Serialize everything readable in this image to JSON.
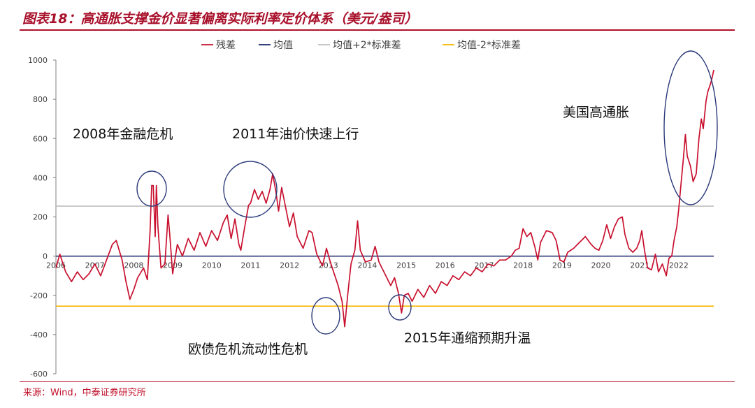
{
  "header": {
    "title": "图表18：高通胀支撑金价显著偏离实际利率定价体系（美元/盎司）"
  },
  "footer": {
    "source": "来源：Wind，中泰证券研究所"
  },
  "colors": {
    "accent": "#b1102a",
    "series_residual": "#c8102e",
    "series_mean": "#17246b",
    "series_upper": "#bfbfbf",
    "series_lower": "#f5b800",
    "circle": "#2b3a7a"
  },
  "chart_data": {
    "type": "line",
    "title": "",
    "xlabel": "",
    "ylabel": "",
    "ylim": [
      -600,
      1000
    ],
    "xlim": [
      2006,
      2022.9
    ],
    "yticks": [
      -600,
      -400,
      -200,
      0,
      200,
      400,
      600,
      800,
      1000
    ],
    "xticks": [
      2006,
      2007,
      2008,
      2009,
      2010,
      2011,
      2012,
      2013,
      2014,
      2015,
      2016,
      2017,
      2018,
      2019,
      2020,
      2021,
      2022
    ],
    "grid": false,
    "legend_position": "top",
    "legend": [
      "残差",
      "均值",
      "均值+2*标准差",
      "均值-2*标准差"
    ],
    "series": [
      {
        "name": "残差",
        "points": [
          [
            2006.0,
            -60
          ],
          [
            2006.1,
            10
          ],
          [
            2006.25,
            -80
          ],
          [
            2006.4,
            -130
          ],
          [
            2006.55,
            -80
          ],
          [
            2006.7,
            -120
          ],
          [
            2006.85,
            -90
          ],
          [
            2007.0,
            -40
          ],
          [
            2007.15,
            -100
          ],
          [
            2007.3,
            -20
          ],
          [
            2007.45,
            60
          ],
          [
            2007.55,
            80
          ],
          [
            2007.7,
            -20
          ],
          [
            2007.8,
            -130
          ],
          [
            2007.9,
            -220
          ],
          [
            2008.0,
            -170
          ],
          [
            2008.1,
            -110
          ],
          [
            2008.25,
            -60
          ],
          [
            2008.35,
            -120
          ],
          [
            2008.42,
            130
          ],
          [
            2008.46,
            360
          ],
          [
            2008.5,
            360
          ],
          [
            2008.55,
            100
          ],
          [
            2008.58,
            360
          ],
          [
            2008.62,
            150
          ],
          [
            2008.7,
            -60
          ],
          [
            2008.8,
            -40
          ],
          [
            2008.88,
            210
          ],
          [
            2008.92,
            120
          ],
          [
            2009.0,
            -90
          ],
          [
            2009.12,
            60
          ],
          [
            2009.25,
            0
          ],
          [
            2009.4,
            90
          ],
          [
            2009.55,
            30
          ],
          [
            2009.7,
            120
          ],
          [
            2009.85,
            50
          ],
          [
            2010.0,
            130
          ],
          [
            2010.15,
            80
          ],
          [
            2010.3,
            170
          ],
          [
            2010.4,
            210
          ],
          [
            2010.5,
            90
          ],
          [
            2010.6,
            190
          ],
          [
            2010.7,
            60
          ],
          [
            2010.75,
            30
          ],
          [
            2010.85,
            150
          ],
          [
            2010.95,
            260
          ],
          [
            2011.0,
            270
          ],
          [
            2011.1,
            340
          ],
          [
            2011.2,
            290
          ],
          [
            2011.3,
            330
          ],
          [
            2011.4,
            270
          ],
          [
            2011.5,
            340
          ],
          [
            2011.57,
            420
          ],
          [
            2011.65,
            330
          ],
          [
            2011.72,
            230
          ],
          [
            2011.8,
            350
          ],
          [
            2011.9,
            250
          ],
          [
            2012.0,
            150
          ],
          [
            2012.1,
            220
          ],
          [
            2012.2,
            100
          ],
          [
            2012.35,
            40
          ],
          [
            2012.5,
            130
          ],
          [
            2012.58,
            120
          ],
          [
            2012.7,
            10
          ],
          [
            2012.85,
            -50
          ],
          [
            2012.95,
            40
          ],
          [
            2013.05,
            -30
          ],
          [
            2013.15,
            -90
          ],
          [
            2013.25,
            -150
          ],
          [
            2013.35,
            -230
          ],
          [
            2013.42,
            -360
          ],
          [
            2013.5,
            -190
          ],
          [
            2013.58,
            -40
          ],
          [
            2013.68,
            30
          ],
          [
            2013.75,
            180
          ],
          [
            2013.82,
            30
          ],
          [
            2013.95,
            -30
          ],
          [
            2014.1,
            -20
          ],
          [
            2014.2,
            50
          ],
          [
            2014.3,
            -30
          ],
          [
            2014.45,
            -90
          ],
          [
            2014.6,
            -150
          ],
          [
            2014.7,
            -110
          ],
          [
            2014.8,
            -190
          ],
          [
            2014.88,
            -290
          ],
          [
            2014.95,
            -200
          ],
          [
            2015.05,
            -190
          ],
          [
            2015.15,
            -230
          ],
          [
            2015.3,
            -170
          ],
          [
            2015.45,
            -210
          ],
          [
            2015.6,
            -150
          ],
          [
            2015.75,
            -190
          ],
          [
            2015.9,
            -130
          ],
          [
            2016.05,
            -150
          ],
          [
            2016.2,
            -100
          ],
          [
            2016.35,
            -120
          ],
          [
            2016.5,
            -80
          ],
          [
            2016.65,
            -100
          ],
          [
            2016.8,
            -60
          ],
          [
            2016.95,
            -80
          ],
          [
            2017.1,
            -40
          ],
          [
            2017.25,
            -50
          ],
          [
            2017.4,
            -20
          ],
          [
            2017.55,
            -20
          ],
          [
            2017.7,
            0
          ],
          [
            2017.8,
            30
          ],
          [
            2017.9,
            40
          ],
          [
            2018.0,
            140
          ],
          [
            2018.1,
            100
          ],
          [
            2018.2,
            120
          ],
          [
            2018.3,
            50
          ],
          [
            2018.38,
            -20
          ],
          [
            2018.45,
            70
          ],
          [
            2018.6,
            130
          ],
          [
            2018.75,
            120
          ],
          [
            2018.85,
            80
          ],
          [
            2018.95,
            -20
          ],
          [
            2019.05,
            -30
          ],
          [
            2019.15,
            20
          ],
          [
            2019.3,
            40
          ],
          [
            2019.45,
            70
          ],
          [
            2019.6,
            100
          ],
          [
            2019.75,
            60
          ],
          [
            2019.85,
            40
          ],
          [
            2019.95,
            30
          ],
          [
            2020.05,
            80
          ],
          [
            2020.15,
            160
          ],
          [
            2020.25,
            90
          ],
          [
            2020.35,
            150
          ],
          [
            2020.45,
            190
          ],
          [
            2020.55,
            200
          ],
          [
            2020.62,
            110
          ],
          [
            2020.72,
            40
          ],
          [
            2020.82,
            20
          ],
          [
            2020.92,
            40
          ],
          [
            2021.0,
            80
          ],
          [
            2021.05,
            130
          ],
          [
            2021.12,
            30
          ],
          [
            2021.2,
            -60
          ],
          [
            2021.3,
            -70
          ],
          [
            2021.4,
            10
          ],
          [
            2021.48,
            -80
          ],
          [
            2021.58,
            -40
          ],
          [
            2021.68,
            -100
          ],
          [
            2021.75,
            -10
          ],
          [
            2021.82,
            0
          ],
          [
            2021.88,
            80
          ],
          [
            2021.95,
            150
          ],
          [
            2022.0,
            240
          ],
          [
            2022.05,
            350
          ],
          [
            2022.12,
            500
          ],
          [
            2022.17,
            620
          ],
          [
            2022.22,
            510
          ],
          [
            2022.3,
            460
          ],
          [
            2022.37,
            380
          ],
          [
            2022.45,
            420
          ],
          [
            2022.52,
            600
          ],
          [
            2022.58,
            700
          ],
          [
            2022.63,
            650
          ],
          [
            2022.7,
            790
          ],
          [
            2022.75,
            840
          ],
          [
            2022.82,
            880
          ],
          [
            2022.87,
            920
          ],
          [
            2022.9,
            950
          ]
        ]
      },
      {
        "name": "均值",
        "value": 0
      },
      {
        "name": "均值+2*标准差",
        "value": 255
      },
      {
        "name": "均值-2*标准差",
        "value": -255
      }
    ],
    "annotations": [
      {
        "text": "2008年金融危机"
      },
      {
        "text": "2011年油价快速上行"
      },
      {
        "text": "欧债危机流动性危机"
      },
      {
        "text": "2015年通缩预期升温"
      },
      {
        "text": "美国高通胀"
      }
    ]
  }
}
